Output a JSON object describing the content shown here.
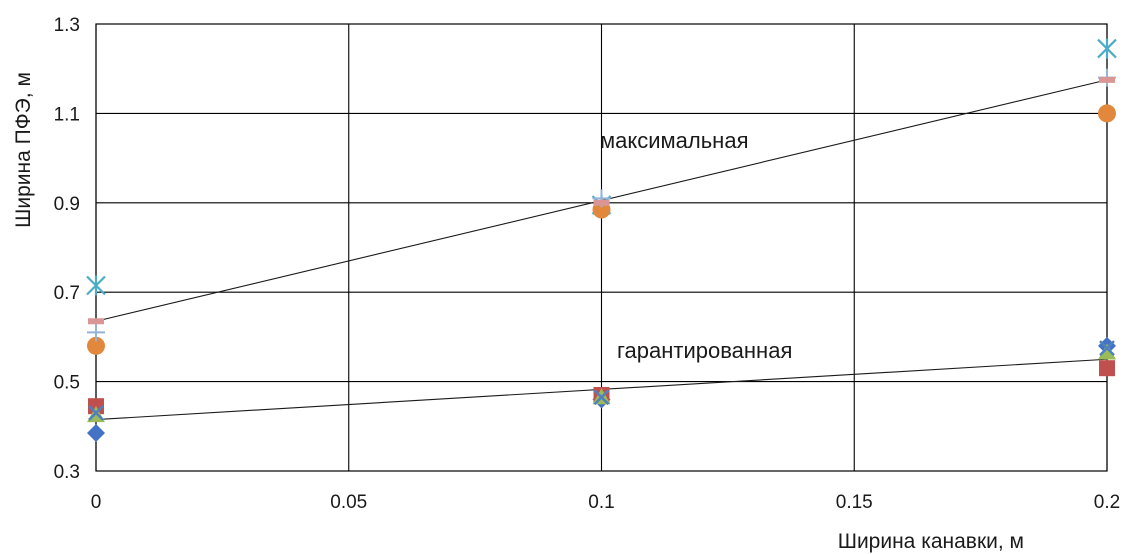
{
  "chart_data": {
    "type": "scatter",
    "xlabel": "Ширина канавки, м",
    "ylabel": "Ширина ПФЭ, м",
    "xlim": [
      0,
      0.2
    ],
    "ylim": [
      0.3,
      1.3
    ],
    "x_ticks": [
      "0",
      "0.05",
      "0.1",
      "0.15",
      "0.2"
    ],
    "y_ticks": [
      "0.3",
      "0.5",
      "0.7",
      "0.9",
      "1.1",
      "1.3"
    ],
    "grid": true,
    "legend": "none",
    "annotations": [
      {
        "text": "максимальная"
      },
      {
        "text": "гарантированная"
      }
    ],
    "series": [
      {
        "marker": "diamond",
        "color": "#4472c4",
        "x": [
          0,
          0.1,
          0.2
        ],
        "y": [
          0.385,
          0.46,
          0.58
        ]
      },
      {
        "marker": "square",
        "color": "#c0504d",
        "x": [
          0,
          0.1,
          0.2
        ],
        "y": [
          0.445,
          0.47,
          0.53
        ]
      },
      {
        "marker": "triangle",
        "color": "#9bbb59",
        "x": [
          0,
          0.1,
          0.2
        ],
        "y": [
          0.425,
          0.465,
          0.565
        ]
      },
      {
        "marker": "x",
        "color": "#4f81bd",
        "x": [
          0,
          0.1,
          0.2
        ],
        "y": [
          0.43,
          0.465,
          0.575
        ]
      },
      {
        "marker": "star",
        "color": "#4bacc6",
        "x": [
          0,
          0.1,
          0.2
        ],
        "y": [
          0.715,
          0.895,
          1.245
        ]
      },
      {
        "marker": "circle",
        "color": "#e2883c",
        "x": [
          0,
          0.1,
          0.2
        ],
        "y": [
          0.58,
          0.885,
          1.1
        ]
      },
      {
        "marker": "plus",
        "color": "#95b3d7",
        "x": [
          0,
          0.1,
          0.2
        ],
        "y": [
          0.61,
          0.91,
          1.18
        ]
      },
      {
        "marker": "dash",
        "color": "#d99694",
        "x": [
          0,
          0.1,
          0.2
        ],
        "y": [
          0.635,
          0.9,
          1.175
        ]
      }
    ],
    "trendlines": [
      {
        "x": [
          0,
          0.2
        ],
        "y": [
          0.635,
          1.175
        ]
      },
      {
        "x": [
          0,
          0.2
        ],
        "y": [
          0.415,
          0.55
        ]
      }
    ]
  }
}
